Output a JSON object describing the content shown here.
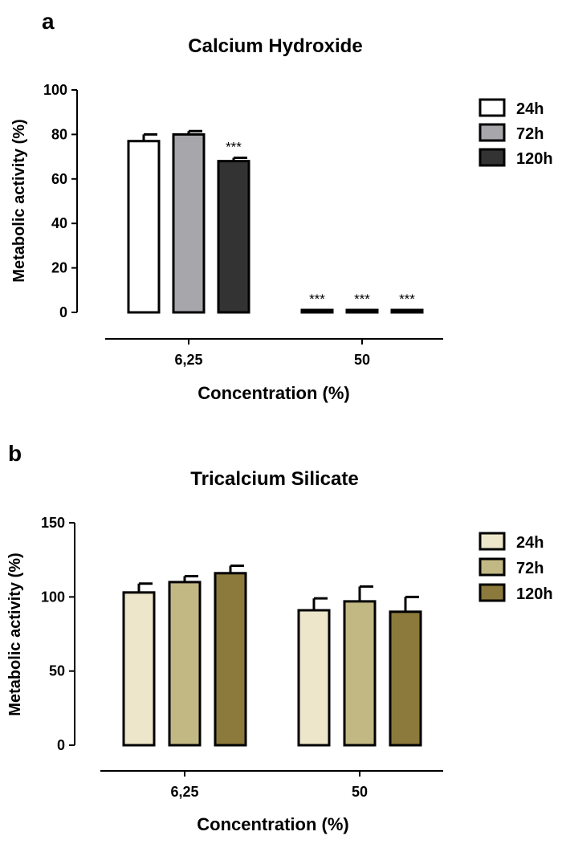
{
  "chart_data": [
    {
      "panel_letter": "a",
      "type": "bar",
      "title": "Calcium Hydroxide",
      "xlabel": "Concentration (%)",
      "ylabel": "Metabolic activity (%)",
      "ylim": [
        0,
        100
      ],
      "yticks": [
        "0",
        "20",
        "40",
        "60",
        "80",
        "100"
      ],
      "categories": [
        "6,25",
        "50"
      ],
      "legend_position": "top-right",
      "series": [
        {
          "name": "24h",
          "color": "#ffffff",
          "values": [
            77,
            1
          ],
          "errors": [
            3,
            0
          ],
          "significance": [
            "",
            "***"
          ]
        },
        {
          "name": "72h",
          "color": "#a7a7ab",
          "values": [
            80,
            0.5
          ],
          "errors": [
            1.5,
            0
          ],
          "significance": [
            "",
            "***"
          ]
        },
        {
          "name": "120h",
          "color": "#333333",
          "values": [
            68,
            0.5
          ],
          "errors": [
            1.5,
            0
          ],
          "significance": [
            "***",
            "***"
          ]
        }
      ]
    },
    {
      "panel_letter": "b",
      "type": "bar",
      "title": "Tricalcium Silicate",
      "xlabel": "Concentration (%)",
      "ylabel": "Metabolic activity (%)",
      "ylim": [
        0,
        150
      ],
      "yticks": [
        "0",
        "50",
        "100",
        "150"
      ],
      "categories": [
        "6,25",
        "50"
      ],
      "legend_position": "top-right",
      "series": [
        {
          "name": "24h",
          "color": "#ede6cb",
          "values": [
            103,
            91
          ],
          "errors": [
            6,
            8
          ],
          "significance": [
            "",
            ""
          ]
        },
        {
          "name": "72h",
          "color": "#c2b883",
          "values": [
            110,
            97
          ],
          "errors": [
            4,
            10
          ],
          "significance": [
            "",
            ""
          ]
        },
        {
          "name": "120h",
          "color": "#8b7a3c",
          "values": [
            116,
            90
          ],
          "errors": [
            5,
            10
          ],
          "significance": [
            "",
            ""
          ]
        }
      ]
    }
  ]
}
